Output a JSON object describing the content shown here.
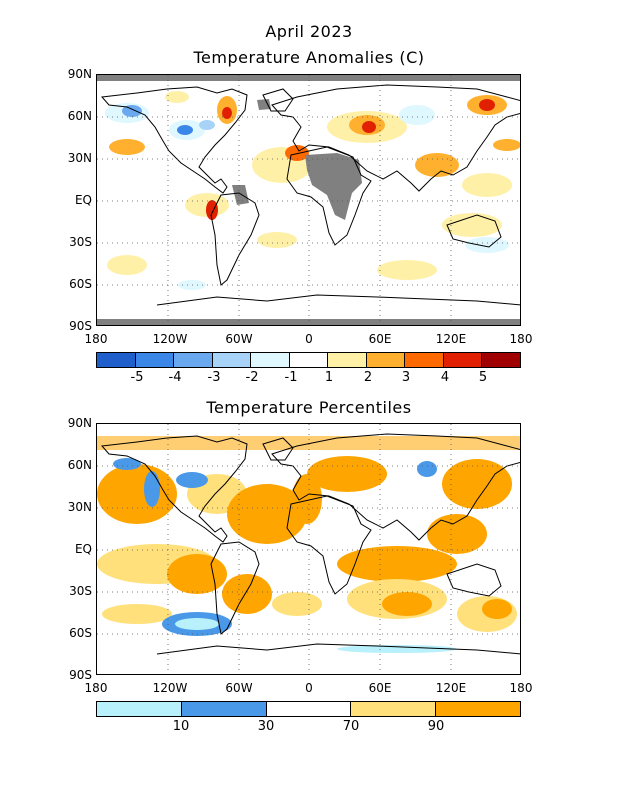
{
  "map1": {
    "title_line1": "April 2023",
    "title_line2": "Temperature Anomalies (C)",
    "lat_labels": [
      "90N",
      "60N",
      "30N",
      "EQ",
      "30S",
      "60S",
      "90S"
    ],
    "lon_labels": [
      "180",
      "120W",
      "60W",
      "0",
      "60E",
      "120E",
      "180"
    ],
    "legend_colors": [
      "#1e5fcc",
      "#3a87e8",
      "#6aa8f0",
      "#a6d3f7",
      "#dff7ff",
      "#ffffff",
      "#fff0a8",
      "#ffb02e",
      "#ff6a00",
      "#e02000",
      "#a00000"
    ],
    "legend_labels": [
      "-5",
      "-4",
      "-3",
      "-2",
      "-1",
      "1",
      "2",
      "3",
      "4",
      "5"
    ],
    "missing_color": "#808080"
  },
  "map2": {
    "title": "Temperature Percentiles",
    "lat_labels": [
      "90N",
      "60N",
      "30N",
      "EQ",
      "30S",
      "60S",
      "90S"
    ],
    "lon_labels": [
      "180",
      "120W",
      "60W",
      "0",
      "60E",
      "120E",
      "180"
    ],
    "legend_colors": [
      "#b8f0fb",
      "#4a98e8",
      "#ffffff",
      "#ffe07a",
      "#ffa500"
    ],
    "legend_labels": [
      "10",
      "30",
      "70",
      "90"
    ]
  }
}
